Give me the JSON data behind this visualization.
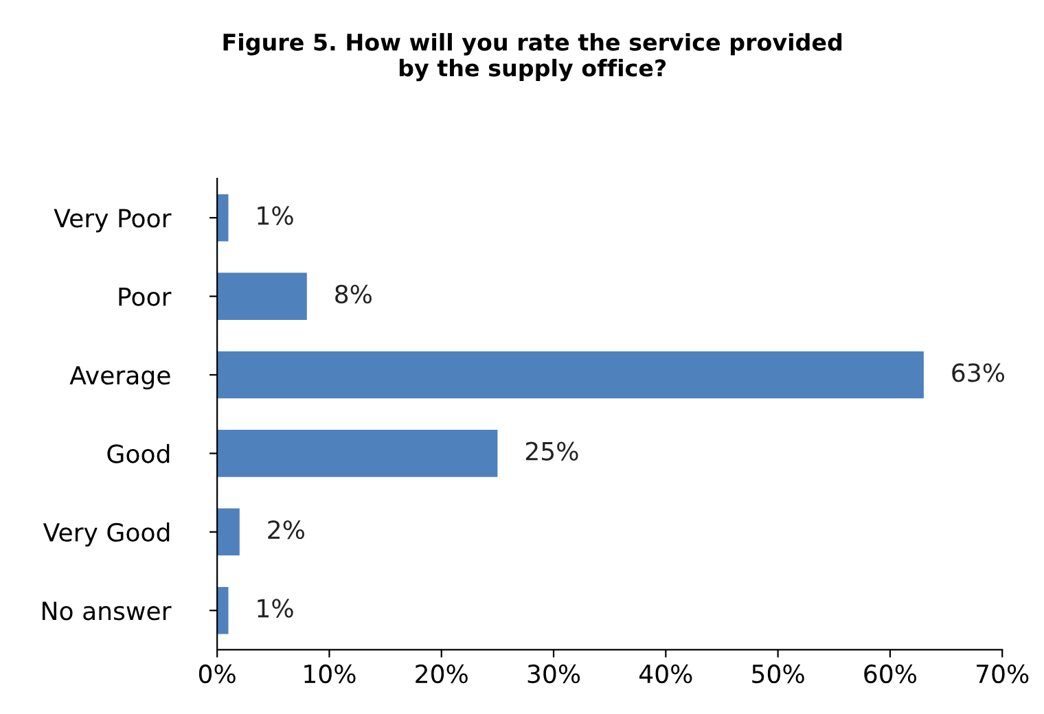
{
  "chart_data": {
    "type": "bar",
    "orientation": "horizontal",
    "title": "Figure 5. How will you rate the service provided\nby the supply office?",
    "categories": [
      "Very Poor",
      "Poor",
      "Average",
      "Good",
      "Very Good",
      "No answer"
    ],
    "values": [
      1,
      8,
      63,
      25,
      2,
      1
    ],
    "value_labels": [
      "1%",
      "8%",
      "63%",
      "25%",
      "2%",
      "1%"
    ],
    "color": "#4f81bd",
    "xlim": [
      0,
      70
    ],
    "xticks": [
      {
        "value": 0,
        "label": "0%"
      },
      {
        "value": 10,
        "label": "10%"
      },
      {
        "value": 20,
        "label": "20%"
      },
      {
        "value": 30,
        "label": "30%"
      },
      {
        "value": 40,
        "label": "40%"
      },
      {
        "value": 50,
        "label": "50%"
      },
      {
        "value": 60,
        "label": "60%"
      },
      {
        "value": 70,
        "label": "70%"
      }
    ],
    "grid": false,
    "legend": false
  }
}
